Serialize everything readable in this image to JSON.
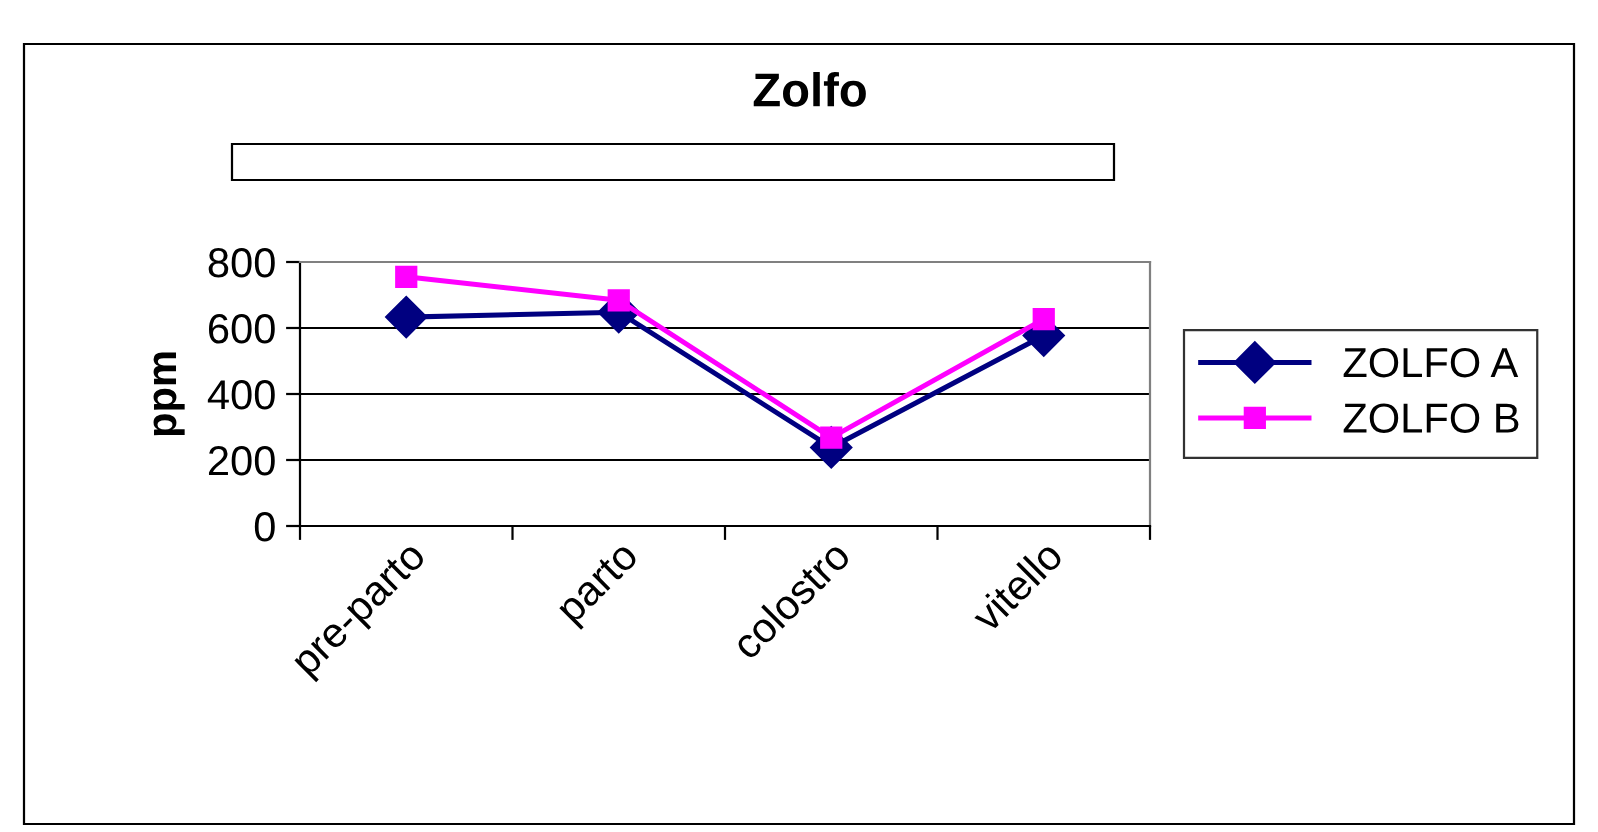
{
  "chart_data": {
    "type": "line",
    "title": "Zolfo",
    "ylabel": "ppm",
    "categories": [
      "pre-parto",
      "parto",
      "colostro",
      "vitello"
    ],
    "series": [
      {
        "name": "ZOLFO A",
        "color": "#000080",
        "marker": "diamond",
        "values": [
          633,
          648,
          238,
          577
        ]
      },
      {
        "name": "ZOLFO B",
        "color": "#ff00ff",
        "marker": "square",
        "values": [
          755,
          684,
          268,
          627
        ]
      }
    ],
    "ylim": [
      0,
      800
    ],
    "yticks": [
      0,
      200,
      400,
      600,
      800
    ],
    "grid": "y",
    "legend": "right",
    "line_style": "solid"
  }
}
